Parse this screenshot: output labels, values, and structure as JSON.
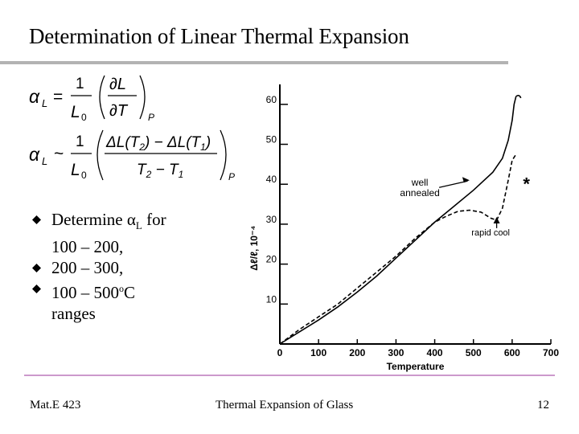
{
  "slide": {
    "title": "Determination of Linear Thermal Expansion",
    "equations": {
      "alpha_symbol": "α",
      "alpha_sub": "L",
      "eq1_rel": "=",
      "eq2_rel": "~",
      "one": "1",
      "L": "L",
      "L0_base": "L",
      "L0_sub": "0",
      "dL": "∂L",
      "dT": "∂T",
      "P": "P",
      "delta_num": "ΔL(T",
      "sub2": "2",
      "minus_delta": ") − ΔL(T",
      "sub1": "1",
      "close_paren": ")",
      "T": "T",
      "minus": " − "
    },
    "bullets": [
      {
        "pre": "Determine ",
        "alpha": "α",
        "sub": "L",
        "post": " for",
        "line2": "100 – 200,"
      },
      {
        "text": "200 – 300,"
      },
      {
        "pre": "100 – 500",
        "deg": "o",
        "post": "C",
        "line2": "ranges"
      }
    ],
    "footer": {
      "left": "Mat.E 423",
      "center": "Thermal Expansion of Glass",
      "page": "12"
    },
    "colors": {
      "title_rule": "#b3b3b3",
      "footer_rule": "#cc99cc",
      "bullet_icon": "#000000"
    }
  },
  "chart_data": {
    "type": "line",
    "xlabel": "Temperature",
    "ylabel": "Δℓ/ℓ, 10⁻⁴",
    "xlim": [
      0,
      700
    ],
    "ylim": [
      0,
      65
    ],
    "x_ticks": [
      0,
      100,
      200,
      300,
      400,
      500,
      600,
      700
    ],
    "x_tick_labels": [
      "0",
      "100",
      "200",
      "300",
      "400",
      "500",
      "600",
      "700"
    ],
    "y_ticks": [
      10,
      20,
      30,
      40,
      50,
      60
    ],
    "y_tick_labels": [
      "10",
      "20",
      "30",
      "40",
      "50",
      "60"
    ],
    "series": [
      {
        "name": "well annealed",
        "style": "solid",
        "x": [
          0,
          50,
          100,
          150,
          200,
          250,
          300,
          350,
          400,
          450,
          500,
          550,
          575,
          590,
          600,
          605,
          610
        ],
        "y": [
          0,
          3,
          6,
          9.3,
          13,
          17,
          21.5,
          26,
          30.5,
          34.5,
          38.5,
          43,
          46.5,
          51,
          56,
          60,
          62
        ]
      },
      {
        "name": "rapid cool",
        "style": "dashed",
        "x": [
          0,
          50,
          100,
          150,
          200,
          250,
          300,
          350,
          400,
          430,
          460,
          490,
          520,
          545,
          560,
          575,
          590,
          600,
          610
        ],
        "y": [
          0,
          3.6,
          6.8,
          10,
          14,
          18,
          22,
          26.5,
          30.5,
          32,
          33.2,
          33.5,
          33,
          31.5,
          31,
          34,
          41,
          46,
          47.5
        ]
      }
    ],
    "annotations": [
      {
        "text": "well",
        "text2": "annealed",
        "x": 370,
        "y": 40
      },
      {
        "text": "rapid cool",
        "x": 495,
        "y": 28
      },
      {
        "text": "*",
        "x": 628,
        "y": 41
      }
    ]
  }
}
